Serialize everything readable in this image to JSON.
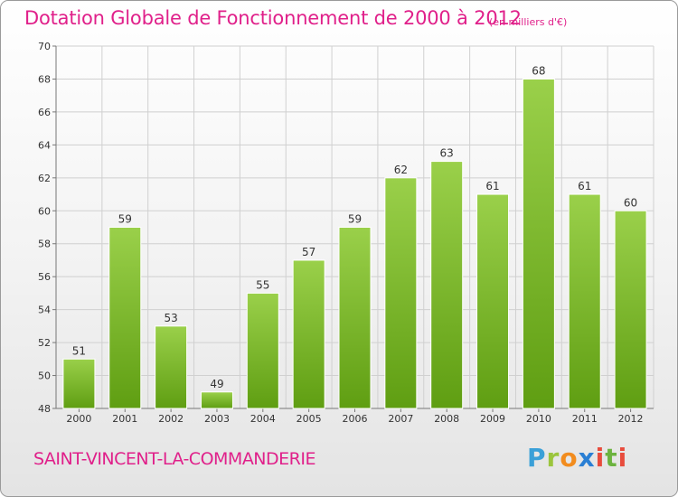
{
  "header": {
    "title": "Dotation Globale de Fonctionnement de 2000 à 2012",
    "subtitle": "(en milliers d'€)"
  },
  "footer": {
    "commune": "SAINT-VINCENT-LA-COMMANDERIE",
    "logo_text": "Proxiti"
  },
  "colors": {
    "title": "#e0208a",
    "bar_top": "#9ad04a",
    "bar_bottom": "#5f9e12",
    "grid": "#d0d0d0"
  },
  "chart_data": {
    "type": "bar",
    "title": "Dotation Globale de Fonctionnement de 2000 à 2012",
    "subtitle": "(en milliers d'€)",
    "categories": [
      "2000",
      "2001",
      "2002",
      "2003",
      "2004",
      "2005",
      "2006",
      "2007",
      "2008",
      "2009",
      "2010",
      "2011",
      "2012"
    ],
    "values": [
      51,
      59,
      53,
      49,
      55,
      57,
      59,
      62,
      63,
      61,
      68,
      61,
      60
    ],
    "ylim": [
      48,
      70
    ],
    "yticks": [
      48,
      50,
      52,
      54,
      56,
      58,
      60,
      62,
      64,
      66,
      68,
      70
    ],
    "grid": true,
    "data_labels": true
  }
}
